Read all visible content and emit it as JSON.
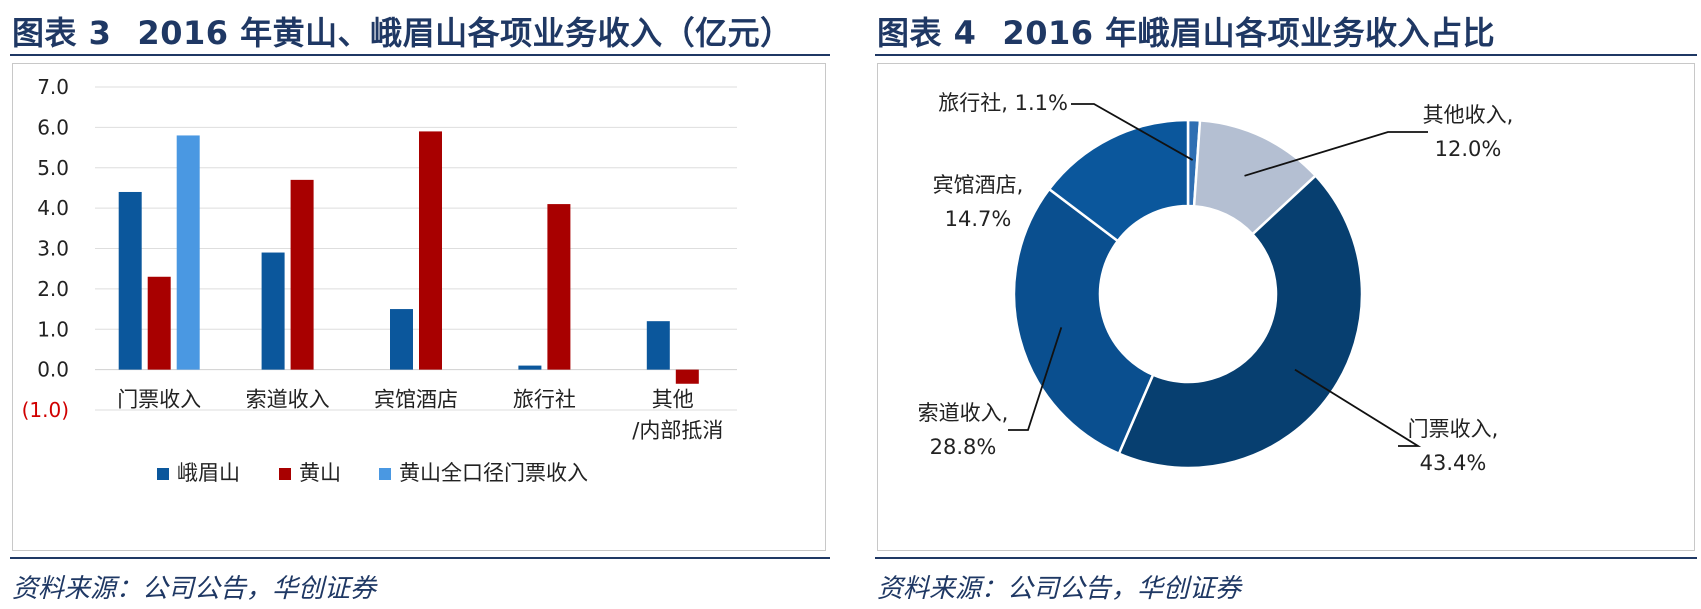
{
  "left": {
    "figure_label": "图表 3",
    "title": "2016 年黄山、峨眉山各项业务收入（亿元）",
    "source": "资料来源：公司公告，华创证券"
  },
  "right": {
    "figure_label": "图表 4",
    "title": "2016 年峨眉山各项业务收入占比",
    "source": "资料来源：公司公告，华创证券"
  },
  "chart_data": [
    {
      "type": "bar",
      "title": "2016 年黄山、峨眉山各项业务收入（亿元）",
      "categories": [
        "门票收入",
        "索道收入",
        "宾馆酒店",
        "旅行社",
        "其他\n/内部抵消"
      ],
      "series": [
        {
          "name": "峨眉山",
          "color": "#0b579c",
          "values": [
            4.4,
            2.9,
            1.5,
            0.1,
            1.2
          ]
        },
        {
          "name": "黄山",
          "color": "#a80000",
          "values": [
            2.3,
            4.7,
            5.9,
            4.1,
            -0.35
          ]
        },
        {
          "name": "黄山全口径门票收入",
          "color": "#4a98e2",
          "values": [
            5.8,
            null,
            null,
            null,
            null
          ]
        }
      ],
      "yticks": [
        "7.0",
        "6.0",
        "5.0",
        "4.0",
        "3.0",
        "2.0",
        "1.0",
        "0.0",
        "(1.0)"
      ],
      "ylim": [
        -1,
        7
      ],
      "grid": true,
      "legend_position": "bottom"
    },
    {
      "type": "pie",
      "donut": true,
      "title": "2016 年峨眉山各项业务收入占比",
      "slices": [
        {
          "label": "旅行社",
          "value": 1.1,
          "text": "1.1%",
          "color": "#2f6fb3"
        },
        {
          "label": "其他收入",
          "value": 12.0,
          "text": "12.0%",
          "color": "#b4bfd2"
        },
        {
          "label": "门票收入",
          "value": 43.4,
          "text": "43.4%",
          "color": "#073f70"
        },
        {
          "label": "索道收入",
          "value": 28.8,
          "text": "28.8%",
          "color": "#0a4f8f"
        },
        {
          "label": "宾馆酒店",
          "value": 14.7,
          "text": "14.7%",
          "color": "#0b579c"
        }
      ]
    }
  ]
}
